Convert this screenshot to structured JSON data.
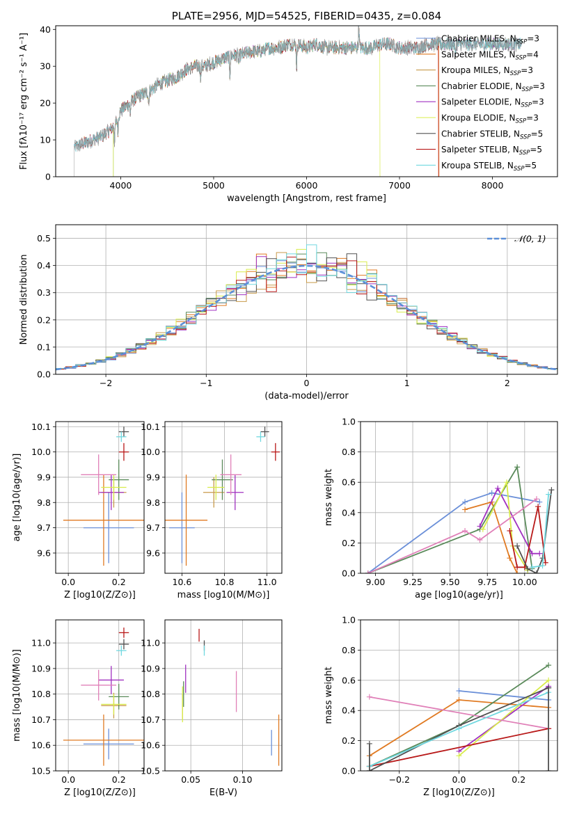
{
  "colors": {
    "chabrier_miles": "#6a8fd8",
    "salpeter_miles": "#e07a22",
    "kroupa_miles": "#c89a4a",
    "chabrier_elodie": "#5a8a5a",
    "salpeter_elodie": "#a030c0",
    "kroupa_elodie": "#d8ec4a",
    "chabrier_stelib": "#505050",
    "salpeter_stelib": "#b81818",
    "kroupa_stelib": "#70d8e0",
    "pink": "#e080b8",
    "gaussian": "#5b8fd8"
  },
  "chart_data": [
    {
      "id": "spectrum",
      "type": "line",
      "title": "PLATE=2956, MJD=54525, FIBERID=0435, z=0.084",
      "xlabel": "wavelength [Angstrom, rest frame]",
      "ylabel": "Flux [fλ10⁻¹⁷ erg cm⁻² s⁻¹ A⁻¹]",
      "xlim": [
        3300,
        8700
      ],
      "ylim": [
        0,
        41
      ],
      "xticks": [
        "4000",
        "5000",
        "6000",
        "7000",
        "8000"
      ],
      "yticks": [
        "0",
        "10",
        "20",
        "30",
        "40"
      ],
      "grid": false,
      "legend_position": "top-right",
      "legend": [
        "Chabrier MILES, NSSP=3",
        "Salpeter MILES, NSSP=4",
        "Kroupa MILES, NSSP=3",
        "Chabrier ELODIE, NSSP=3",
        "Salpeter ELODIE, NSSP=3",
        "Kroupa ELODIE, NSSP=3",
        "Chabrier STELIB, NSSP=5",
        "Salpeter STELIB, NSSP=5",
        "Kroupa STELIB, NSSP=5"
      ],
      "continuum": {
        "x": [
          3500,
          3600,
          3700,
          3800,
          3900,
          3950,
          4000,
          4100,
          4200,
          4300,
          4400,
          4500,
          4600,
          4700,
          4800,
          4900,
          5000,
          5100,
          5200,
          5300,
          5400,
          5500,
          5600,
          5700,
          5800,
          5900,
          6000,
          6100,
          6200,
          6300,
          6400,
          6500,
          6600,
          6700,
          6800,
          6900,
          7000,
          7100,
          7200,
          7300,
          7400,
          7500,
          7600,
          7700,
          7800,
          7900,
          8000,
          8100,
          8200,
          8300
        ],
        "y": [
          8,
          9,
          10,
          11,
          13,
          15,
          18,
          20,
          22,
          23,
          25,
          26,
          27,
          29,
          30,
          30,
          31,
          32,
          33,
          33,
          34,
          34,
          35,
          35,
          36,
          36,
          35,
          36,
          35,
          35,
          35,
          35,
          35,
          35,
          36,
          36,
          35,
          35,
          35,
          36,
          36,
          36,
          36,
          36,
          36,
          36,
          36,
          36,
          36,
          36
        ]
      }
    },
    {
      "id": "residuals",
      "type": "histogram",
      "xlabel": "(data-model)/error",
      "ylabel": "Normed distribution",
      "xlim": [
        -2.5,
        2.5
      ],
      "ylim": [
        0,
        0.55
      ],
      "xticks": [
        "−2",
        "−1",
        "0",
        "1",
        "2"
      ],
      "yticks": [
        "0.0",
        "0.1",
        "0.2",
        "0.3",
        "0.4",
        "0.5"
      ],
      "grid": true,
      "legend_position": "top-right",
      "legend": [
        "𝒩(0, 1)"
      ],
      "bin_width": 0.1
    },
    {
      "id": "age-vs-Z",
      "type": "errorbar",
      "xlabel": "Z [log10(Z/Z⊙)]",
      "ylabel": "age  [log10(age/yr)]",
      "xlim": [
        -0.05,
        0.3
      ],
      "ylim": [
        9.52,
        10.12
      ],
      "xticks": [
        "0.0",
        "0.2"
      ],
      "yticks": [
        "9.6",
        "9.7",
        "9.8",
        "9.9",
        "10.0",
        "10.1"
      ],
      "grid": true,
      "points": [
        {
          "c": "chabrier_miles",
          "x": 0.16,
          "xe": 0.1,
          "y": 9.7,
          "ye": 0.14
        },
        {
          "c": "salpeter_miles",
          "x": 0.14,
          "xe": 0.16,
          "y": 9.73,
          "ye": 0.18
        },
        {
          "c": "kroupa_miles",
          "x": 0.18,
          "xe": 0.05,
          "y": 9.84,
          "ye": 0.06
        },
        {
          "c": "chabrier_elodie",
          "x": 0.2,
          "xe": 0.04,
          "y": 9.89,
          "ye": 0.08
        },
        {
          "c": "salpeter_elodie",
          "x": 0.17,
          "xe": 0.05,
          "y": 9.84,
          "ye": 0.07
        },
        {
          "c": "kroupa_elodie",
          "x": 0.18,
          "xe": 0.05,
          "y": 9.86,
          "ye": 0.05
        },
        {
          "c": "pink",
          "x": 0.12,
          "xe": 0.07,
          "y": 9.91,
          "ye": 0.08
        },
        {
          "c": "chabrier_stelib",
          "x": 0.22,
          "xe": 0.02,
          "y": 10.08,
          "ye": 0.02
        },
        {
          "c": "salpeter_stelib",
          "x": 0.22,
          "xe": 0.02,
          "y": 10.0,
          "ye": 0.035
        },
        {
          "c": "kroupa_stelib",
          "x": 0.21,
          "xe": 0.02,
          "y": 10.06,
          "ye": 0.02
        }
      ]
    },
    {
      "id": "age-vs-mass",
      "type": "errorbar",
      "xlabel": "mass [log10(M/M⊙)]",
      "ylabel": "",
      "xlim": [
        10.52,
        11.07
      ],
      "ylim": [
        9.52,
        10.12
      ],
      "xticks": [
        "10.6",
        "10.8",
        "11.0"
      ],
      "yticks": [
        "9.6",
        "9.7",
        "9.8",
        "9.9",
        "10.0",
        "10.1"
      ],
      "grid": true,
      "points": [
        {
          "c": "chabrier_miles",
          "x": 10.6,
          "xe": 0.06,
          "y": 9.7,
          "ye": 0.14
        },
        {
          "c": "salpeter_miles",
          "x": 10.62,
          "xe": 0.1,
          "y": 9.73,
          "ye": 0.18
        },
        {
          "c": "kroupa_miles",
          "x": 10.75,
          "xe": 0.05,
          "y": 9.84,
          "ye": 0.06
        },
        {
          "c": "chabrier_elodie",
          "x": 10.79,
          "xe": 0.05,
          "y": 9.89,
          "ye": 0.08
        },
        {
          "c": "salpeter_elodie",
          "x": 10.85,
          "xe": 0.04,
          "y": 9.84,
          "ye": 0.07
        },
        {
          "c": "kroupa_elodie",
          "x": 10.76,
          "xe": 0.04,
          "y": 9.86,
          "ye": 0.05
        },
        {
          "c": "pink",
          "x": 10.83,
          "xe": 0.05,
          "y": 9.91,
          "ye": 0.08
        },
        {
          "c": "chabrier_stelib",
          "x": 10.99,
          "xe": 0.02,
          "y": 10.08,
          "ye": 0.02
        },
        {
          "c": "salpeter_stelib",
          "x": 11.04,
          "xe": 0.02,
          "y": 10.0,
          "ye": 0.035
        },
        {
          "c": "kroupa_stelib",
          "x": 10.97,
          "xe": 0.02,
          "y": 10.06,
          "ye": 0.02
        }
      ]
    },
    {
      "id": "weight-vs-age",
      "type": "line",
      "xlabel": "age  [log10(age/yr)]",
      "ylabel": "mass weight",
      "xlim": [
        8.9,
        10.22
      ],
      "ylim": [
        0,
        1
      ],
      "xticks": [
        "9.00",
        "9.25",
        "9.50",
        "9.75",
        "10.00"
      ],
      "yticks": [
        "0.0",
        "0.2",
        "0.4",
        "0.6",
        "0.8",
        "1.0"
      ],
      "grid": true,
      "series": [
        {
          "c": "chabrier_miles",
          "x": [
            8.95,
            9.6,
            9.78,
            10.1
          ],
          "y": [
            0.0,
            0.47,
            0.53,
            0.47
          ]
        },
        {
          "c": "salpeter_miles",
          "x": [
            9.6,
            9.78,
            9.9,
            9.95
          ],
          "y": [
            0.42,
            0.47,
            0.1,
            0.0
          ]
        },
        {
          "c": "chabrier_elodie",
          "x": [
            8.95,
            9.7,
            9.95,
            10.05
          ],
          "y": [
            0.0,
            0.29,
            0.7,
            0.03
          ]
        },
        {
          "c": "salpeter_elodie",
          "x": [
            9.7,
            9.82,
            10.05,
            10.1
          ],
          "y": [
            0.31,
            0.56,
            0.13,
            0.13
          ]
        },
        {
          "c": "kroupa_elodie",
          "x": [
            9.72,
            9.88,
            9.92,
            10.02
          ],
          "y": [
            0.29,
            0.6,
            0.18,
            0.02
          ]
        },
        {
          "c": "pink",
          "x": [
            8.95,
            9.6,
            9.7,
            10.08
          ],
          "y": [
            0.0,
            0.28,
            0.22,
            0.49
          ]
        },
        {
          "c": "salpeter_stelib",
          "x": [
            9.9,
            9.95,
            10.0,
            10.09,
            10.14
          ],
          "y": [
            0.28,
            0.04,
            0.04,
            0.44,
            0.07
          ]
        },
        {
          "c": "chabrier_stelib",
          "x": [
            9.95,
            10.02,
            10.08,
            10.12,
            10.18
          ],
          "y": [
            0.18,
            0.03,
            0.0,
            0.1,
            0.55
          ]
        },
        {
          "c": "kroupa_stelib",
          "x": [
            10.05,
            10.12,
            10.16
          ],
          "y": [
            0.04,
            0.05,
            0.52
          ]
        }
      ]
    },
    {
      "id": "mass-vs-Z",
      "type": "errorbar",
      "xlabel": "Z [log10(Z/Z⊙)]",
      "ylabel": "mass [log10(M/M⊙)]",
      "xlim": [
        -0.05,
        0.3
      ],
      "ylim": [
        10.5,
        11.09
      ],
      "xticks": [
        "0.0",
        "0.2"
      ],
      "yticks": [
        "10.5",
        "10.6",
        "10.7",
        "10.8",
        "10.9",
        "11.0"
      ],
      "grid": true,
      "points": [
        {
          "c": "chabrier_miles",
          "x": 0.16,
          "xe": 0.1,
          "y": 10.605,
          "ye": 0.06
        },
        {
          "c": "salpeter_miles",
          "x": 0.14,
          "xe": 0.16,
          "y": 10.62,
          "ye": 0.1
        },
        {
          "c": "kroupa_miles",
          "x": 0.18,
          "xe": 0.05,
          "y": 10.755,
          "ye": 0.05
        },
        {
          "c": "chabrier_elodie",
          "x": 0.2,
          "xe": 0.04,
          "y": 10.79,
          "ye": 0.05
        },
        {
          "c": "salpeter_elodie",
          "x": 0.17,
          "xe": 0.05,
          "y": 10.855,
          "ye": 0.055
        },
        {
          "c": "kroupa_elodie",
          "x": 0.18,
          "xe": 0.05,
          "y": 10.76,
          "ye": 0.04
        },
        {
          "c": "pink",
          "x": 0.12,
          "xe": 0.07,
          "y": 10.835,
          "ye": 0.06
        },
        {
          "c": "chabrier_stelib",
          "x": 0.22,
          "xe": 0.02,
          "y": 10.995,
          "ye": 0.02
        },
        {
          "c": "salpeter_stelib",
          "x": 0.22,
          "xe": 0.02,
          "y": 11.04,
          "ye": 0.02
        },
        {
          "c": "kroupa_stelib",
          "x": 0.21,
          "xe": 0.02,
          "y": 10.97,
          "ye": 0.02
        }
      ]
    },
    {
      "id": "mass-vs-ebv",
      "type": "errorbar",
      "xlabel": "E(B-V)",
      "ylabel": "",
      "xlim": [
        0.025,
        0.138
      ],
      "ylim": [
        10.5,
        11.09
      ],
      "xticks": [
        "0.05",
        "0.10"
      ],
      "yticks": [
        "10.5",
        "10.6",
        "10.7",
        "10.8",
        "10.9",
        "11.0"
      ],
      "grid": true,
      "points": [
        {
          "c": "chabrier_miles",
          "x": 0.128,
          "xe": 0,
          "y": 10.61,
          "ye": 0.05
        },
        {
          "c": "salpeter_miles",
          "x": 0.135,
          "xe": 0,
          "y": 10.62,
          "ye": 0.1
        },
        {
          "c": "kroupa_miles",
          "x": 0.042,
          "xe": 0,
          "y": 10.75,
          "ye": 0.05
        },
        {
          "c": "chabrier_elodie",
          "x": 0.043,
          "xe": 0,
          "y": 10.8,
          "ye": 0.05
        },
        {
          "c": "salpeter_elodie",
          "x": 0.045,
          "xe": 0,
          "y": 10.86,
          "ye": 0.055
        },
        {
          "c": "kroupa_elodie",
          "x": 0.042,
          "xe": 0,
          "y": 10.76,
          "ye": 0.07
        },
        {
          "c": "pink",
          "x": 0.094,
          "xe": 0,
          "y": 10.81,
          "ye": 0.08
        },
        {
          "c": "chabrier_stelib",
          "x": 0.063,
          "xe": 0,
          "y": 10.99,
          "ye": 0.02
        },
        {
          "c": "salpeter_stelib",
          "x": 0.058,
          "xe": 0,
          "y": 11.03,
          "ye": 0.025
        },
        {
          "c": "kroupa_stelib",
          "x": 0.063,
          "xe": 0,
          "y": 10.97,
          "ye": 0.02
        }
      ]
    },
    {
      "id": "weight-vs-Z",
      "type": "line",
      "xlabel": "Z [log10(Z/Z⊙)]",
      "ylabel": "mass weight",
      "xlim": [
        -0.33,
        0.33
      ],
      "ylim": [
        0,
        1
      ],
      "xticks": [
        "−0.2",
        "0.0",
        "0.2"
      ],
      "yticks": [
        "0.0",
        "0.2",
        "0.4",
        "0.6",
        "0.8",
        "1.0"
      ],
      "grid": true,
      "series": [
        {
          "c": "chabrier_miles",
          "x": [
            0.0,
            0.3
          ],
          "y": [
            0.53,
            0.47
          ]
        },
        {
          "c": "salpeter_miles",
          "x": [
            -0.3,
            0.0,
            0.3
          ],
          "y": [
            0.1,
            0.47,
            0.42
          ]
        },
        {
          "c": "chabrier_elodie",
          "x": [
            -0.3,
            0.0,
            0.3
          ],
          "y": [
            0.03,
            0.3,
            0.7
          ]
        },
        {
          "c": "salpeter_elodie",
          "x": [
            0.0,
            0.3
          ],
          "y": [
            0.13,
            0.56
          ]
        },
        {
          "c": "kroupa_elodie",
          "x": [
            0.0,
            0.3
          ],
          "y": [
            0.1,
            0.6
          ]
        },
        {
          "c": "pink",
          "x": [
            -0.3,
            0.3
          ],
          "y": [
            0.49,
            0.28
          ]
        },
        {
          "c": "salpeter_stelib",
          "x": [
            -0.3,
            0.3
          ],
          "y": [
            0.03,
            0.28
          ]
        },
        {
          "c": "chabrier_stelib",
          "x": [
            -0.3,
            0.0,
            0.3
          ],
          "y": [
            0.0,
            0.3,
            0.55
          ]
        },
        {
          "c": "kroupa_stelib",
          "x": [
            -0.3,
            0.0,
            0.3
          ],
          "y": [
            0.03,
            0.28,
            0.52
          ]
        },
        {
          "c": "chabrier_stelib",
          "x": [
            -0.3,
            -0.3
          ],
          "y": [
            0.0,
            0.18
          ]
        },
        {
          "c": "chabrier_stelib",
          "x": [
            0.3,
            0.3
          ],
          "y": [
            0.0,
            0.55
          ]
        }
      ]
    }
  ]
}
